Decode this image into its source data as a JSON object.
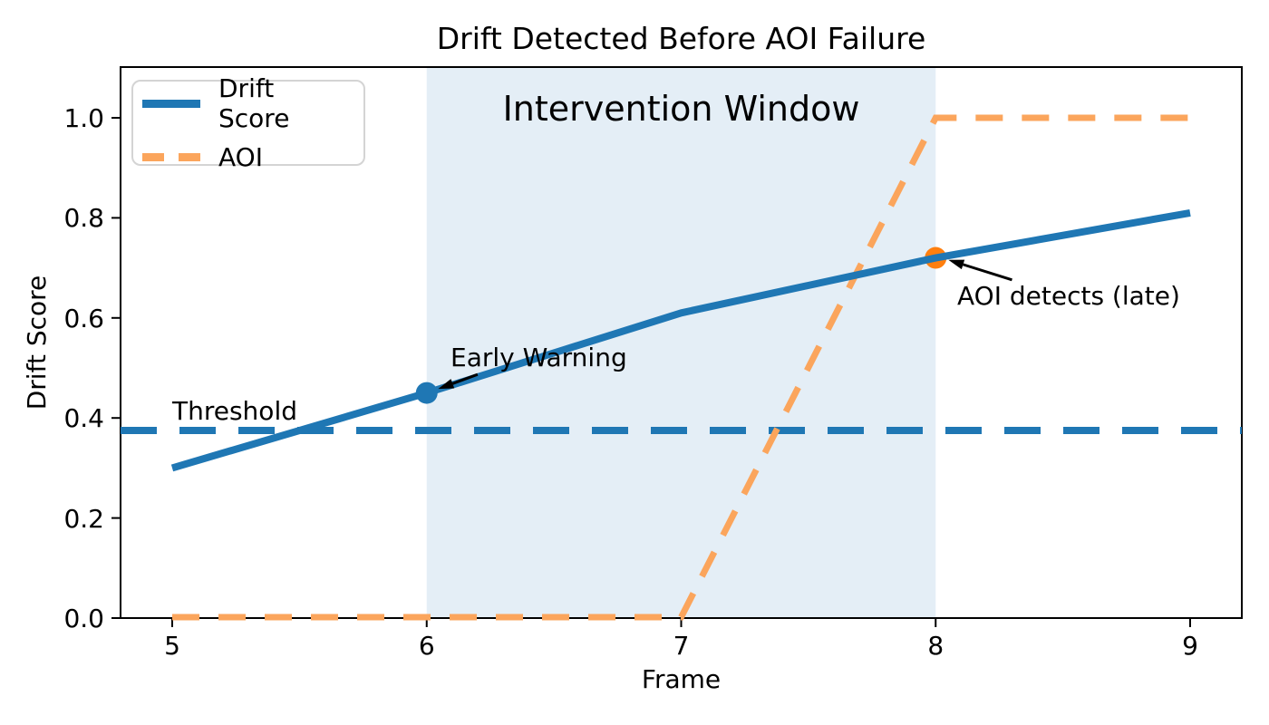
{
  "chart_data": {
    "type": "line",
    "title": "Drift Detected Before AOI Failure",
    "xlabel": "Frame",
    "ylabel": "Drift Score",
    "xlim": [
      4.8,
      9.2
    ],
    "ylim": [
      0,
      1.1
    ],
    "grid": false,
    "x": [
      5,
      6,
      7,
      8,
      9
    ],
    "series": [
      {
        "name": "Drift Score",
        "values": [
          0.3,
          0.45,
          0.61,
          0.72,
          0.81
        ],
        "color": "#1f77b4",
        "line_style": "solid",
        "width": 8
      },
      {
        "name": "AOI",
        "values": [
          0,
          0,
          0,
          1,
          1
        ],
        "color": "#fba55c",
        "line_style": "dashed",
        "width": 7
      }
    ],
    "threshold": {
      "value": 0.375,
      "label": "Threshold",
      "color": "#1f77b4",
      "line_style": "dashed"
    },
    "intervention_window": {
      "x_start": 6,
      "x_end": 8,
      "label": "Intervention Window",
      "fill": "#1f77b4",
      "fill_opacity": 0.12
    },
    "markers": [
      {
        "x": 6,
        "y": 0.45,
        "color": "#1f77b4",
        "radius": 12
      },
      {
        "x": 8,
        "y": 0.72,
        "color": "#ff7f0e",
        "radius": 12
      }
    ],
    "annotations": [
      {
        "text": "Early Warning",
        "arrow_tail": {
          "x": 6.2,
          "y": 0.487
        },
        "arrow_head": {
          "x": 6.045,
          "y": 0.458
        }
      },
      {
        "text": "AOI detects (late)",
        "arrow_tail": {
          "x": 8.3,
          "y": 0.676
        },
        "arrow_head": {
          "x": 8.05,
          "y": 0.716
        }
      }
    ],
    "xticks": {
      "values": [
        5,
        6,
        7,
        8,
        9
      ],
      "labels": [
        "5",
        "6",
        "7",
        "8",
        "9"
      ]
    },
    "yticks": {
      "values": [
        0.0,
        0.2,
        0.4,
        0.6,
        0.8,
        1.0
      ],
      "labels": [
        "0.0",
        "0.2",
        "0.4",
        "0.6",
        "0.8",
        "1.0"
      ]
    },
    "legend": {
      "position": "upper left",
      "entries": [
        {
          "label": "Drift Score",
          "color": "#1f77b4",
          "style": "solid"
        },
        {
          "label": "AOI",
          "color": "#fba55c",
          "style": "dashed"
        }
      ]
    },
    "axis_color": "#000000",
    "background": "#ffffff"
  }
}
